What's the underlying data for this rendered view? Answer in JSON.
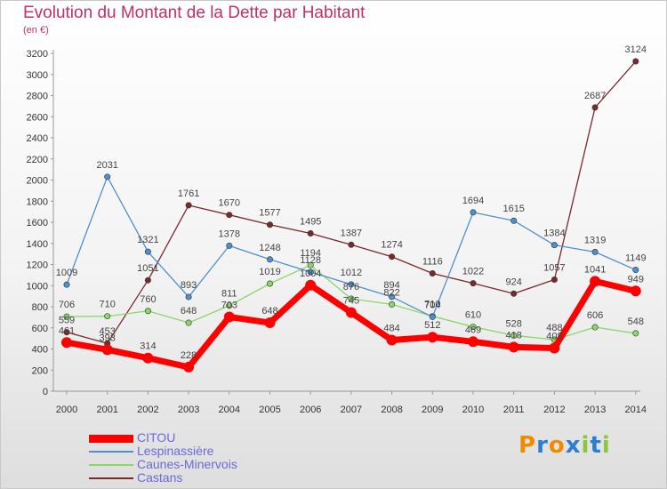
{
  "chart_data": {
    "type": "line",
    "title": "Evolution du Montant de la Dette par Habitant",
    "subtitle": "(en €)",
    "x": [
      "2000",
      "2001",
      "2002",
      "2003",
      "2004",
      "2005",
      "2006",
      "2007",
      "2008",
      "2009",
      "2010",
      "2011",
      "2012",
      "2013",
      "2014"
    ],
    "yticks": [
      0,
      200,
      400,
      600,
      800,
      1000,
      1200,
      1400,
      1600,
      1800,
      2000,
      2200,
      2400,
      2600,
      2800,
      3000,
      3200
    ],
    "ylim": [
      0,
      3200
    ],
    "grid": false,
    "legend_position": "bottom-left",
    "series": [
      {
        "name": "CITOU",
        "color": "#ff0000",
        "values": [
          461,
          393,
          314,
          228,
          703,
          648,
          1004,
          745,
          484,
          512,
          469,
          418,
          408,
          1041,
          949
        ]
      },
      {
        "name": "Lespinassière",
        "color": "#4f8fd0",
        "values": [
          1009,
          2031,
          1321,
          893,
          1378,
          1248,
          1128,
          1012,
          894,
          704,
          1694,
          1615,
          1384,
          1319,
          1149
        ]
      },
      {
        "name": "Caunes-Minervois",
        "color": "#88d868",
        "values": [
          706,
          710,
          760,
          648,
          811,
          1019,
          1194,
          876,
          822,
          710,
          610,
          528,
          488,
          606,
          548
        ]
      },
      {
        "name": "Castans",
        "color": "#7a2a2a",
        "values": [
          559,
          453,
          1051,
          1761,
          1670,
          1577,
          1495,
          1387,
          1274,
          1116,
          1022,
          924,
          1057,
          2687,
          3124
        ]
      }
    ]
  },
  "logo": {
    "text": "Proxiti",
    "letters": [
      {
        "ch": "P",
        "color": "#f08a00"
      },
      {
        "ch": "r",
        "color": "#2c7fd0"
      },
      {
        "ch": "o",
        "color": "#f08a00"
      },
      {
        "ch": "x",
        "color": "#2c7fd0"
      },
      {
        "ch": "i",
        "color": "#8cc63f"
      },
      {
        "ch": "t",
        "color": "#2c7fd0"
      },
      {
        "ch": "i",
        "color": "#8cc63f"
      }
    ]
  }
}
